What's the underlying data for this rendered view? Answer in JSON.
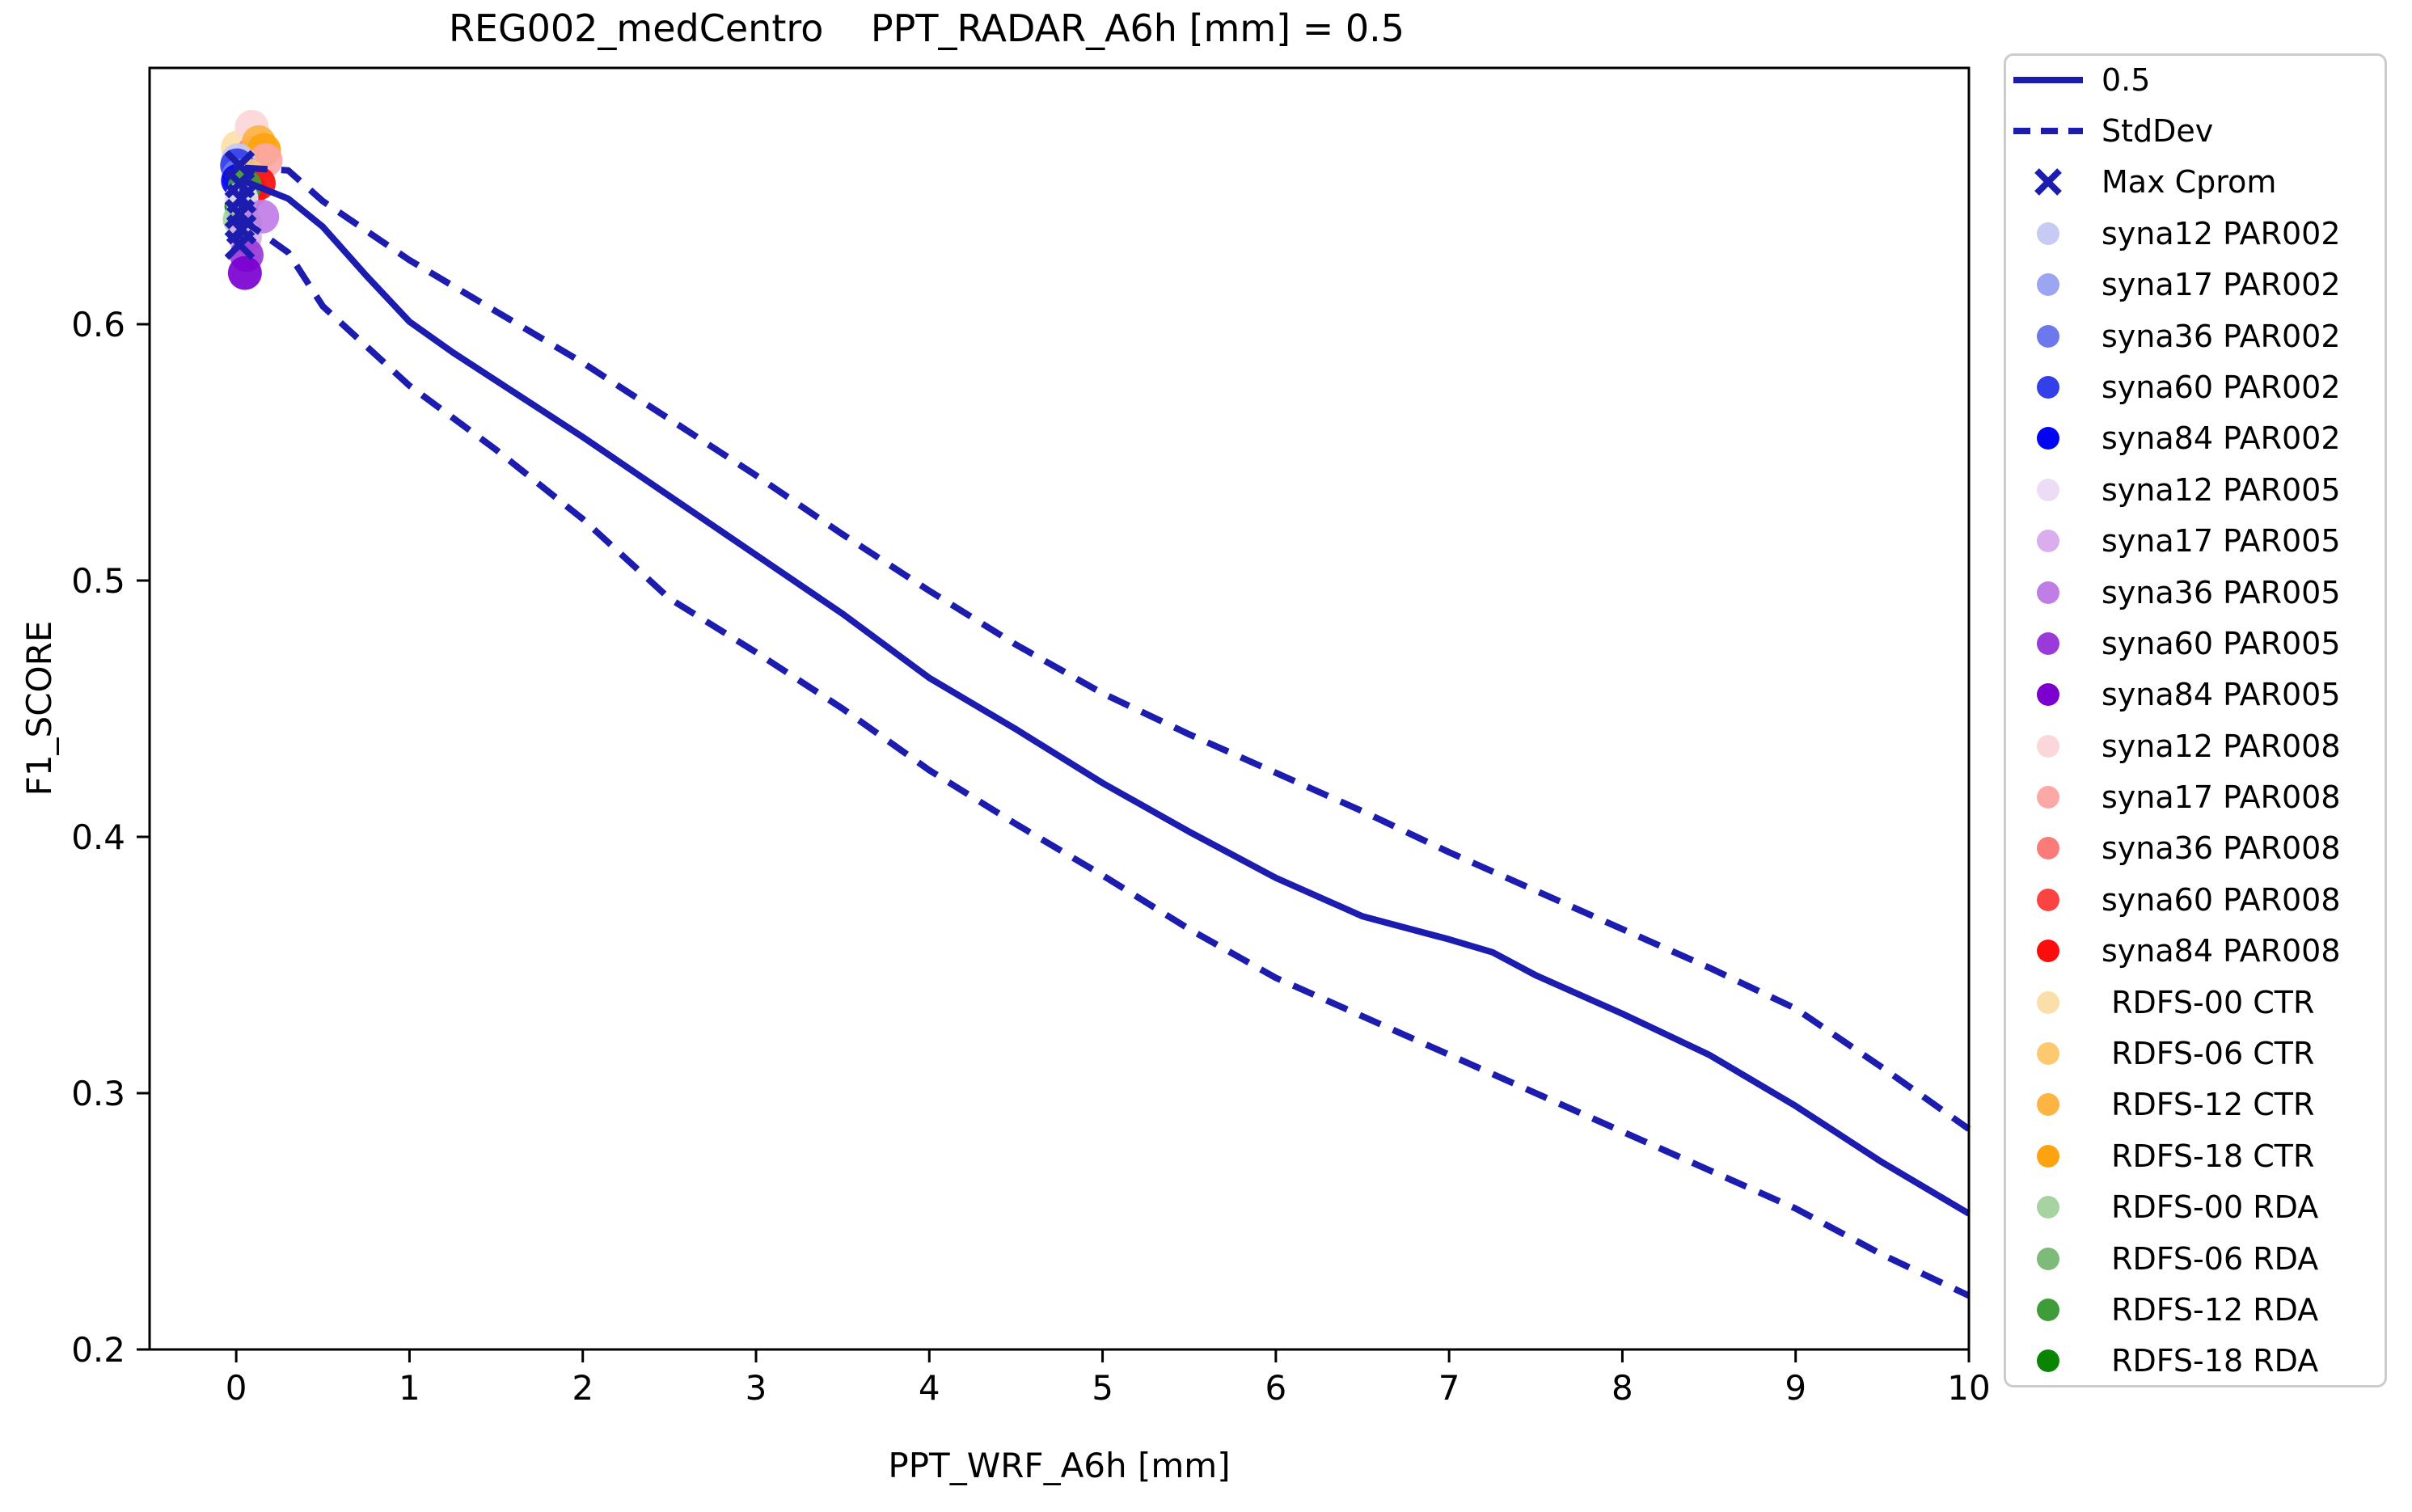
{
  "figure": {
    "title": "REG002_medCentro    PPT_RADAR_A6h [mm] = 0.5",
    "xlabel": "PPT_WRF_A6h [mm]",
    "ylabel": "F1_SCORE"
  },
  "colors": {
    "curve": "#1c1cae",
    "axis": "#000000",
    "legend_border": "#cccccc",
    "background": "#ffffff"
  },
  "chart_data": {
    "type": "line",
    "title": "REG002_medCentro    PPT_RADAR_A6h [mm] = 0.5",
    "xlabel": "PPT_WRF_A6h [mm]",
    "ylabel": "F1_SCORE",
    "xlim": [
      -0.5,
      10
    ],
    "ylim": [
      0.2,
      0.7
    ],
    "x_ticks": [
      0,
      1,
      2,
      3,
      4,
      5,
      6,
      7,
      8,
      9,
      10
    ],
    "x_tick_labels": [
      "0",
      "1",
      "2",
      "3",
      "4",
      "5",
      "6",
      "7",
      "8",
      "9",
      "10"
    ],
    "y_ticks": [
      0.2,
      0.3,
      0.4,
      0.5,
      0.6
    ],
    "y_tick_labels": [
      "0.2",
      "0.3",
      "0.4",
      "0.5",
      "0.6"
    ],
    "grid": false,
    "legend_position": "outside upper right",
    "series": [
      {
        "name": "0.5",
        "type": "line",
        "style": "solid",
        "color": "#1c1cae",
        "x": [
          0.02,
          0.04,
          0.3,
          0.5,
          0.75,
          1,
          1.25,
          1.5,
          2,
          2.5,
          3,
          3.5,
          4,
          4.5,
          5,
          5.5,
          6,
          6.5,
          7,
          7.25,
          7.5,
          8,
          8.5,
          9,
          9.5,
          10
        ],
        "y": [
          0.633,
          0.656,
          0.649,
          0.638,
          0.619,
          0.601,
          0.589,
          0.578,
          0.556,
          0.533,
          0.51,
          0.487,
          0.462,
          0.442,
          0.421,
          0.402,
          0.384,
          0.369,
          0.36,
          0.355,
          0.346,
          0.331,
          0.315,
          0.295,
          0.273,
          0.253
        ]
      },
      {
        "name": "StdDev (upper)",
        "type": "line",
        "style": "dashed",
        "color": "#1c1cae",
        "x": [
          0.05,
          0.3,
          0.5,
          1,
          1.5,
          2,
          2.5,
          3,
          3.5,
          4,
          4.5,
          5,
          5.5,
          6,
          6.5,
          7,
          7.5,
          8,
          8.5,
          9,
          9.5,
          10
        ],
        "y": [
          0.661,
          0.66,
          0.648,
          0.625,
          0.605,
          0.585,
          0.563,
          0.541,
          0.518,
          0.496,
          0.475,
          0.456,
          0.44,
          0.425,
          0.41,
          0.394,
          0.379,
          0.364,
          0.349,
          0.333,
          0.31,
          0.286
        ]
      },
      {
        "name": "StdDev (lower)",
        "type": "line",
        "style": "dashed",
        "color": "#1c1cae",
        "x": [
          0.03,
          0.3,
          0.5,
          1,
          1.5,
          2,
          2.5,
          3,
          3.5,
          4,
          4.5,
          5,
          5.5,
          6,
          6.5,
          7,
          7.5,
          8,
          8.5,
          9,
          9.5,
          10
        ],
        "y": [
          0.641,
          0.628,
          0.607,
          0.576,
          0.551,
          0.524,
          0.493,
          0.472,
          0.45,
          0.426,
          0.405,
          0.385,
          0.364,
          0.345,
          0.33,
          0.315,
          0.3,
          0.285,
          0.27,
          0.255,
          0.237,
          0.221
        ]
      },
      {
        "name": "Max Cprom",
        "type": "scatter",
        "marker": "x",
        "color": "#1c1cae",
        "points": [
          [
            0.02,
            0.662
          ],
          [
            0.02,
            0.655
          ],
          [
            0.03,
            0.649
          ],
          [
            0.02,
            0.643
          ],
          [
            0.03,
            0.637
          ],
          [
            0.02,
            0.631
          ]
        ]
      }
    ],
    "scatter_series": [
      {
        "name": "RDFS-00 CTR",
        "color": "#fbdfa8",
        "points": [
          [
            0.01,
            0.669
          ]
        ]
      },
      {
        "name": "syna12 PAR008",
        "color": "#fcd7d9",
        "points": [
          [
            0.09,
            0.677
          ]
        ]
      },
      {
        "name": "syna36 PAR008",
        "color": "#fa7b78",
        "points": [
          [
            0.1,
            0.667
          ]
        ]
      },
      {
        "name": "RDFS-12 CTR",
        "color": "#fdb442",
        "points": [
          [
            0.13,
            0.671
          ]
        ]
      },
      {
        "name": "RDFS-18 CTR",
        "color": "#fda310",
        "points": [
          [
            0.16,
            0.668
          ]
        ]
      },
      {
        "name": "syna17 PAR008",
        "color": "#fba8a7",
        "points": [
          [
            0.17,
            0.664
          ]
        ]
      },
      {
        "name": "syna12 PAR002",
        "color": "#c7caf2",
        "points": [
          [
            0.01,
            0.664
          ]
        ]
      },
      {
        "name": "syna17 PAR002",
        "color": "#9ba5f0",
        "points": [
          [
            0.02,
            0.661
          ]
        ]
      },
      {
        "name": "syna60 PAR002",
        "color": "#3340e9",
        "points": [
          [
            0.005,
            0.662
          ]
        ]
      },
      {
        "name": "syna36 PAR002",
        "color": "#6d78ec",
        "points": [
          [
            0.015,
            0.658
          ]
        ]
      },
      {
        "name": "syna84 PAR002",
        "color": "#0404f5",
        "points": [
          [
            0.01,
            0.656
          ]
        ]
      },
      {
        "name": "RDFS-06 CTR",
        "color": "#fcc971",
        "points": [
          [
            0.07,
            0.658
          ]
        ]
      },
      {
        "name": "syna60 PAR008",
        "color": "#fb4441",
        "points": [
          [
            0.08,
            0.652
          ]
        ]
      },
      {
        "name": "syna84 PAR008",
        "color": "#fb0d0d",
        "points": [
          [
            0.13,
            0.655
          ]
        ]
      },
      {
        "name": "RDFS-12 RDA",
        "color": "#3f9d39",
        "points": [
          [
            0.05,
            0.654
          ]
        ]
      },
      {
        "name": "RDFS-18 RDA",
        "color": "#0a8502",
        "points": [
          [
            0.03,
            0.646
          ]
        ]
      },
      {
        "name": "RDFS-00 RDA",
        "color": "#a7d3a2",
        "points": [
          [
            0.02,
            0.641
          ]
        ]
      },
      {
        "name": "RDFS-06 RDA",
        "color": "#7eba78",
        "points": [
          [
            0.05,
            0.639
          ]
        ]
      },
      {
        "name": "syna12 PAR005",
        "color": "#ecdcf6",
        "points": [
          [
            0.03,
            0.649
          ]
        ]
      },
      {
        "name": "syna36 PAR005",
        "color": "#c07de6",
        "points": [
          [
            0.15,
            0.642
          ]
        ]
      },
      {
        "name": "syna17 PAR005",
        "color": "#d9adee",
        "points": [
          [
            0.05,
            0.634
          ]
        ]
      },
      {
        "name": "syna60 PAR005",
        "color": "#9a3ad8",
        "points": [
          [
            0.06,
            0.627
          ]
        ]
      },
      {
        "name": "syna84 PAR005",
        "color": "#7b00d0",
        "points": [
          [
            0.05,
            0.62
          ]
        ]
      }
    ]
  },
  "legend": {
    "items": [
      {
        "label": "0.5",
        "marker": "solid-line",
        "color": "#1c1cae"
      },
      {
        "label": "StdDev",
        "marker": "dashed-line",
        "color": "#1c1cae"
      },
      {
        "label": "Max Cprom",
        "marker": "x",
        "color": "#1c1cae"
      },
      {
        "label": "syna12 PAR002",
        "marker": "dot",
        "color": "#c7caf2"
      },
      {
        "label": "syna17 PAR002",
        "marker": "dot",
        "color": "#9ba5f0"
      },
      {
        "label": "syna36 PAR002",
        "marker": "dot",
        "color": "#6d78ec"
      },
      {
        "label": "syna60 PAR002",
        "marker": "dot",
        "color": "#3340e9"
      },
      {
        "label": "syna84 PAR002",
        "marker": "dot",
        "color": "#0404f5"
      },
      {
        "label": "syna12 PAR005",
        "marker": "dot",
        "color": "#ecdcf6"
      },
      {
        "label": "syna17 PAR005",
        "marker": "dot",
        "color": "#d9adee"
      },
      {
        "label": "syna36 PAR005",
        "marker": "dot",
        "color": "#c07de6"
      },
      {
        "label": "syna60 PAR005",
        "marker": "dot",
        "color": "#9a3ad8"
      },
      {
        "label": "syna84 PAR005",
        "marker": "dot",
        "color": "#7b00d0"
      },
      {
        "label": "syna12 PAR008",
        "marker": "dot",
        "color": "#fcd7d9"
      },
      {
        "label": "syna17 PAR008",
        "marker": "dot",
        "color": "#fba8a7"
      },
      {
        "label": "syna36 PAR008",
        "marker": "dot",
        "color": "#fa7b78"
      },
      {
        "label": "syna60 PAR008",
        "marker": "dot",
        "color": "#fb4441"
      },
      {
        "label": "syna84 PAR008",
        "marker": "dot",
        "color": "#fb0d0d"
      },
      {
        "label": " RDFS-00 CTR",
        "marker": "dot",
        "color": "#fbdfa8"
      },
      {
        "label": " RDFS-06 CTR",
        "marker": "dot",
        "color": "#fcc971"
      },
      {
        "label": " RDFS-12 CTR",
        "marker": "dot",
        "color": "#fdb442"
      },
      {
        "label": " RDFS-18 CTR",
        "marker": "dot",
        "color": "#fda310"
      },
      {
        "label": " RDFS-00 RDA",
        "marker": "dot",
        "color": "#a7d3a2"
      },
      {
        "label": " RDFS-06 RDA",
        "marker": "dot",
        "color": "#7eba78"
      },
      {
        "label": " RDFS-12 RDA",
        "marker": "dot",
        "color": "#3f9d39"
      },
      {
        "label": " RDFS-18 RDA",
        "marker": "dot",
        "color": "#0a8502"
      }
    ]
  }
}
